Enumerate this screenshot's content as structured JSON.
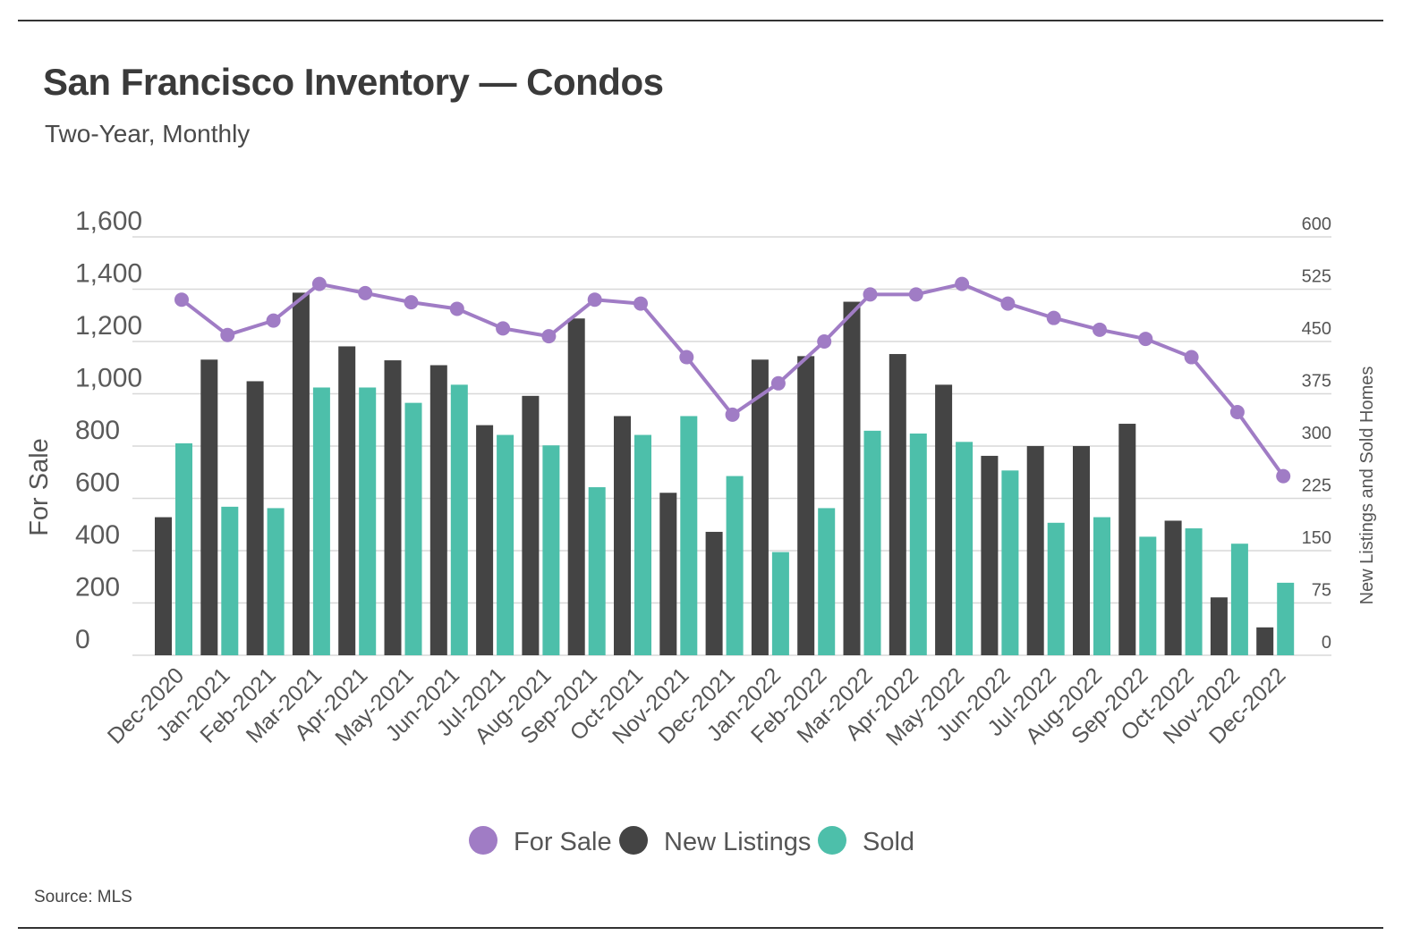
{
  "title": "San Francisco Inventory — Condos",
  "subtitle": "Two-Year, Monthly",
  "source": "Source: MLS",
  "colors": {
    "for_sale": "#a07cc5",
    "new_listings": "#444444",
    "sold": "#4dbfaa",
    "grid": "#d8d8d8",
    "rule": "#333333"
  },
  "chart_data": {
    "type": "bar",
    "title": "San Francisco Inventory — Condos",
    "subtitle": "Two-Year, Monthly",
    "categories": [
      "Dec-2020",
      "Jan-2021",
      "Feb-2021",
      "Mar-2021",
      "Apr-2021",
      "May-2021",
      "Jun-2021",
      "Jul-2021",
      "Aug-2021",
      "Sep-2021",
      "Oct-2021",
      "Nov-2021",
      "Dec-2021",
      "Jan-2022",
      "Feb-2022",
      "Mar-2022",
      "Apr-2022",
      "May-2022",
      "Jun-2022",
      "Jul-2022",
      "Aug-2022",
      "Sep-2022",
      "Oct-2022",
      "Nov-2022",
      "Dec-2022"
    ],
    "left_axis": {
      "label": "For Sale",
      "ylim": [
        0,
        1600
      ],
      "ticks": [
        0,
        200,
        400,
        600,
        800,
        1000,
        1200,
        1400,
        1600
      ],
      "tick_labels": [
        "0",
        "200",
        "400",
        "600",
        "800",
        "1,000",
        "1,200",
        "1,400",
        "1,600"
      ]
    },
    "right_axis": {
      "label": "New Listings and Sold Homes",
      "ylim": [
        0,
        600
      ],
      "ticks": [
        0,
        75,
        150,
        225,
        300,
        375,
        450,
        525,
        600
      ],
      "tick_labels": [
        "0",
        "75",
        "150",
        "225",
        "300",
        "375",
        "450",
        "525",
        "600"
      ]
    },
    "series": [
      {
        "name": "For Sale",
        "type": "line",
        "axis": "left",
        "color": "#a07cc5",
        "values": [
          1360,
          1225,
          1280,
          1420,
          1385,
          1350,
          1325,
          1250,
          1220,
          1360,
          1345,
          1140,
          920,
          1040,
          1200,
          1380,
          1380,
          1420,
          1345,
          1290,
          1245,
          1210,
          1140,
          930,
          685
        ]
      },
      {
        "name": "New Listings",
        "type": "bar",
        "axis": "right",
        "color": "#444444",
        "values": [
          198,
          424,
          393,
          520,
          443,
          423,
          416,
          330,
          372,
          483,
          343,
          233,
          177,
          424,
          429,
          507,
          432,
          388,
          286,
          300,
          300,
          332,
          193,
          83,
          40
        ]
      },
      {
        "name": "Sold",
        "type": "bar",
        "axis": "right",
        "color": "#4dbfaa",
        "values": [
          304,
          213,
          211,
          384,
          384,
          362,
          388,
          316,
          301,
          241,
          316,
          343,
          257,
          148,
          211,
          322,
          318,
          306,
          265,
          190,
          198,
          170,
          182,
          160,
          104
        ]
      }
    ],
    "legend": {
      "position": "bottom-center",
      "entries": [
        "For Sale",
        "New Listings",
        "Sold"
      ]
    },
    "grid": true
  }
}
